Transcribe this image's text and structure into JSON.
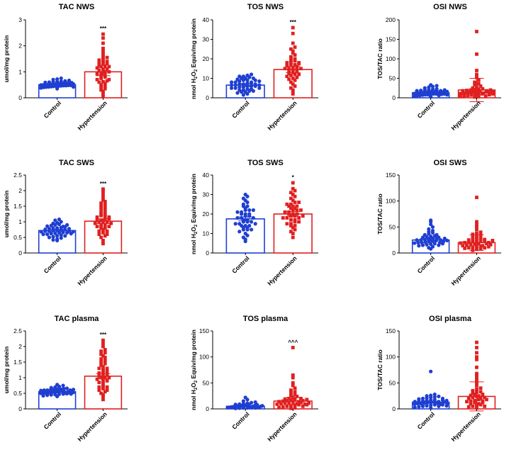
{
  "chart_data": [
    {
      "id": "tac-nws",
      "type": "bar",
      "title": "TAC NWS",
      "ylabel": "umol/mg protein",
      "ylim": [
        0,
        3
      ],
      "yticks": [
        0,
        1,
        2,
        3
      ],
      "categories": [
        "Control",
        "Hypertension"
      ],
      "means": [
        0.5,
        1.0
      ],
      "errors": [
        0.05,
        0.15
      ],
      "significance": "***",
      "series": [
        {
          "name": "Control",
          "color": "#1f3fd1",
          "points": [
            0.35,
            0.38,
            0.4,
            0.41,
            0.42,
            0.43,
            0.44,
            0.45,
            0.45,
            0.46,
            0.47,
            0.47,
            0.48,
            0.48,
            0.49,
            0.49,
            0.5,
            0.5,
            0.5,
            0.51,
            0.51,
            0.52,
            0.52,
            0.53,
            0.53,
            0.54,
            0.54,
            0.55,
            0.55,
            0.56,
            0.56,
            0.57,
            0.58,
            0.59,
            0.6,
            0.61,
            0.62,
            0.63,
            0.65,
            0.67,
            0.7,
            0.72,
            0.75,
            0.42,
            0.53
          ]
        },
        {
          "name": "Hypertension",
          "color": "#e02020",
          "points": [
            0.05,
            0.15,
            0.25,
            0.3,
            0.35,
            0.4,
            0.45,
            0.5,
            0.55,
            0.6,
            0.62,
            0.65,
            0.7,
            0.75,
            0.8,
            0.85,
            0.9,
            0.92,
            0.95,
            1.0,
            1.05,
            1.08,
            1.1,
            1.15,
            1.2,
            1.22,
            1.25,
            1.3,
            1.32,
            1.35,
            1.4,
            1.45,
            1.5,
            1.55,
            1.6,
            1.7,
            1.8,
            1.9,
            2.1,
            2.3,
            2.45,
            0.7,
            1.0,
            1.2,
            1.4
          ]
        }
      ]
    },
    {
      "id": "tos-nws",
      "type": "bar",
      "title": "TOS NWS",
      "ylabel": "nmol H2O2 Equiv/mg protein",
      "ylim": [
        0,
        40
      ],
      "yticks": [
        0,
        10,
        20,
        30,
        40
      ],
      "categories": [
        "Control",
        "Hypertension"
      ],
      "means": [
        6.5,
        14.5
      ],
      "errors": [
        0.8,
        1.6
      ],
      "significance": "***",
      "series": [
        {
          "name": "Control",
          "color": "#1f3fd1",
          "points": [
            1.5,
            2,
            2.5,
            3,
            3,
            3.5,
            4,
            4,
            4.5,
            5,
            5,
            5.5,
            5.5,
            6,
            6,
            6.5,
            6.5,
            7,
            7,
            7.5,
            7.5,
            8,
            8,
            8.5,
            9,
            9,
            9.5,
            10,
            10,
            10.5,
            11,
            11,
            11.5,
            12,
            3.5,
            4.5,
            6,
            7,
            8,
            9,
            10,
            5,
            6.5,
            8.5
          ]
        },
        {
          "name": "Hypertension",
          "color": "#e02020",
          "points": [
            2,
            3,
            4,
            5,
            6,
            7,
            8,
            9,
            9.5,
            10,
            11,
            11.5,
            12,
            12.5,
            13,
            13.5,
            14,
            14,
            14.5,
            15,
            15,
            15.5,
            16,
            16.5,
            17,
            17,
            17.5,
            18,
            18.5,
            19,
            19.5,
            20,
            21,
            22,
            23,
            24,
            25,
            26,
            28,
            33,
            36,
            10.5,
            15,
            18,
            12
          ]
        }
      ]
    },
    {
      "id": "osi-nws",
      "type": "bar",
      "title": "OSI NWS",
      "ylabel": "TOS/TAC ratio",
      "ylim": [
        0,
        200
      ],
      "yticks": [
        0,
        50,
        100,
        150,
        200
      ],
      "categories": [
        "Control",
        "Hypertension"
      ],
      "means": [
        13,
        20
      ],
      "errors": [
        2,
        30
      ],
      "significance": "",
      "series": [
        {
          "name": "Control",
          "color": "#1f3fd1",
          "points": [
            3,
            4,
            5,
            6,
            7,
            8,
            8,
            9,
            10,
            10,
            11,
            11,
            12,
            12,
            13,
            13,
            14,
            14,
            15,
            15,
            16,
            17,
            18,
            19,
            20,
            21,
            22,
            23,
            25,
            27,
            29,
            31,
            33,
            6,
            9,
            12,
            15,
            18,
            10,
            14,
            8,
            11,
            16,
            20
          ]
        },
        {
          "name": "Hypertension",
          "color": "#e02020",
          "points": [
            2,
            3,
            4,
            5,
            6,
            7,
            8,
            9,
            10,
            11,
            12,
            13,
            14,
            15,
            16,
            17,
            18,
            19,
            20,
            21,
            22,
            23,
            25,
            27,
            30,
            33,
            36,
            40,
            45,
            52,
            60,
            70,
            112,
            170,
            5,
            8,
            10,
            12,
            15,
            18,
            20,
            14,
            16
          ]
        }
      ]
    },
    {
      "id": "tac-sws",
      "type": "bar",
      "title": "TAC SWS",
      "ylabel": "umol/mg protein",
      "ylim": [
        0,
        2.5
      ],
      "yticks": [
        0,
        0.5,
        1.0,
        1.5,
        2.0,
        2.5
      ],
      "categories": [
        "Control",
        "Hypertension"
      ],
      "means": [
        0.72,
        1.02
      ],
      "errors": [
        0.04,
        0.08
      ],
      "significance": "***",
      "series": [
        {
          "name": "Control",
          "color": "#1f3fd1",
          "points": [
            0.4,
            0.42,
            0.45,
            0.48,
            0.5,
            0.52,
            0.55,
            0.57,
            0.6,
            0.6,
            0.62,
            0.63,
            0.65,
            0.66,
            0.68,
            0.7,
            0.7,
            0.72,
            0.73,
            0.75,
            0.76,
            0.78,
            0.8,
            0.8,
            0.82,
            0.84,
            0.86,
            0.88,
            0.9,
            0.92,
            0.95,
            0.97,
            1.0,
            1.05,
            1.08,
            0.55,
            0.65,
            0.75,
            0.85,
            0.7,
            0.62,
            0.78,
            0.9,
            0.68
          ]
        },
        {
          "name": "Hypertension",
          "color": "#e02020",
          "points": [
            0.3,
            0.4,
            0.5,
            0.55,
            0.6,
            0.65,
            0.7,
            0.75,
            0.8,
            0.8,
            0.85,
            0.9,
            0.9,
            0.95,
            1.0,
            1.0,
            1.05,
            1.05,
            1.1,
            1.1,
            1.15,
            1.2,
            1.2,
            1.25,
            1.3,
            1.35,
            1.4,
            1.45,
            1.5,
            1.55,
            1.6,
            1.65,
            1.7,
            1.8,
            1.9,
            2.0,
            2.05,
            0.7,
            0.85,
            1.0,
            1.15,
            0.95,
            1.25,
            0.6
          ]
        }
      ]
    },
    {
      "id": "tos-sws",
      "type": "bar",
      "title": "TOS SWS",
      "ylabel": "nmol H2O2 Equiv/mg protein",
      "ylim": [
        0,
        40
      ],
      "yticks": [
        0,
        10,
        20,
        30,
        40
      ],
      "categories": [
        "Control",
        "Hypertension"
      ],
      "means": [
        17.5,
        20
      ],
      "errors": [
        1,
        1.2
      ],
      "significance": "*",
      "series": [
        {
          "name": "Control",
          "color": "#1f3fd1",
          "points": [
            6,
            7,
            8,
            9,
            10,
            11,
            12,
            12,
            13,
            13,
            14,
            14,
            15,
            15,
            16,
            16,
            17,
            17,
            18,
            18,
            19,
            19,
            20,
            20,
            21,
            21,
            22,
            22,
            23,
            24,
            25,
            26,
            27,
            28,
            29,
            30,
            12,
            14,
            16,
            18,
            20,
            22,
            24,
            15
          ]
        },
        {
          "name": "Hypertension",
          "color": "#e02020",
          "points": [
            8,
            10,
            11,
            12,
            13,
            14,
            15,
            15,
            16,
            16,
            17,
            17,
            18,
            18,
            19,
            19,
            20,
            20,
            21,
            21,
            22,
            22,
            23,
            23,
            24,
            24,
            25,
            25,
            26,
            27,
            28,
            29,
            30,
            31,
            32,
            33,
            36,
            14,
            18,
            20,
            22,
            26,
            19,
            24
          ]
        }
      ]
    },
    {
      "id": "osi-sws",
      "type": "bar",
      "title": "OSI SWS",
      "ylabel": "TOS/TAC ratio",
      "ylim": [
        0,
        150
      ],
      "yticks": [
        0,
        50,
        100,
        150
      ],
      "categories": [
        "Control",
        "Hypertension"
      ],
      "means": [
        25,
        20
      ],
      "errors": [
        3,
        15
      ],
      "significance": "",
      "series": [
        {
          "name": "Control",
          "color": "#1f3fd1",
          "points": [
            8,
            10,
            12,
            14,
            15,
            16,
            17,
            18,
            19,
            20,
            20,
            21,
            22,
            23,
            24,
            25,
            25,
            26,
            27,
            28,
            29,
            30,
            31,
            32,
            33,
            35,
            37,
            39,
            41,
            43,
            46,
            50,
            55,
            60,
            63,
            15,
            20,
            25,
            30,
            22,
            28,
            18,
            35,
            24
          ]
        },
        {
          "name": "Hypertension",
          "color": "#e02020",
          "points": [
            5,
            7,
            8,
            9,
            10,
            11,
            12,
            13,
            14,
            15,
            16,
            17,
            18,
            19,
            20,
            21,
            22,
            23,
            24,
            25,
            26,
            27,
            28,
            30,
            32,
            34,
            36,
            38,
            40,
            45,
            50,
            55,
            60,
            107,
            10,
            14,
            18,
            22,
            26,
            12,
            16,
            20,
            24
          ]
        }
      ]
    },
    {
      "id": "tac-plasma",
      "type": "bar",
      "title": "TAC plasma",
      "ylabel": "umol/mg protein",
      "ylim": [
        0,
        2.5
      ],
      "yticks": [
        0,
        0.5,
        1.0,
        1.5,
        2.0,
        2.5
      ],
      "categories": [
        "Control",
        "Hypertension"
      ],
      "means": [
        0.55,
        1.05
      ],
      "errors": [
        0.03,
        0.08
      ],
      "significance": "***",
      "series": [
        {
          "name": "Control",
          "color": "#1f3fd1",
          "points": [
            0.4,
            0.42,
            0.44,
            0.45,
            0.46,
            0.47,
            0.48,
            0.49,
            0.5,
            0.5,
            0.51,
            0.52,
            0.52,
            0.53,
            0.54,
            0.55,
            0.55,
            0.56,
            0.57,
            0.58,
            0.58,
            0.59,
            0.6,
            0.6,
            0.61,
            0.62,
            0.63,
            0.64,
            0.65,
            0.66,
            0.68,
            0.7,
            0.72,
            0.75,
            0.78,
            0.5,
            0.55,
            0.6,
            0.52,
            0.57,
            0.62,
            0.48,
            0.53
          ]
        },
        {
          "name": "Hypertension",
          "color": "#e02020",
          "points": [
            0.3,
            0.4,
            0.45,
            0.5,
            0.55,
            0.6,
            0.65,
            0.7,
            0.75,
            0.8,
            0.85,
            0.9,
            0.95,
            1.0,
            1.0,
            1.05,
            1.1,
            1.15,
            1.2,
            1.2,
            1.25,
            1.3,
            1.35,
            1.4,
            1.45,
            1.5,
            1.55,
            1.6,
            1.65,
            1.7,
            1.75,
            1.8,
            1.85,
            1.9,
            2.0,
            2.1,
            2.2,
            0.7,
            0.9,
            1.1,
            1.3,
            1.0,
            0.6
          ]
        }
      ]
    },
    {
      "id": "tos-plasma",
      "type": "bar",
      "title": "TOS plasma",
      "ylabel": "nmol H2O2 Equiv/mg protein",
      "ylim": [
        0,
        150
      ],
      "yticks": [
        0,
        50,
        100,
        150
      ],
      "categories": [
        "Control",
        "Hypertension"
      ],
      "means": [
        5,
        15
      ],
      "errors": [
        1,
        7
      ],
      "significance": "^^^",
      "series": [
        {
          "name": "Control",
          "color": "#1f3fd1",
          "points": [
            1,
            1.5,
            2,
            2,
            2.5,
            3,
            3,
            3.5,
            4,
            4,
            4.5,
            5,
            5,
            5.5,
            6,
            6,
            6.5,
            7,
            7,
            7.5,
            8,
            8,
            8.5,
            9,
            10,
            11,
            12,
            13,
            15,
            18,
            22,
            3,
            4,
            5,
            6,
            7,
            8,
            2,
            3,
            4,
            5,
            6
          ]
        },
        {
          "name": "Hypertension",
          "color": "#e02020",
          "points": [
            1,
            2,
            3,
            4,
            5,
            6,
            7,
            8,
            9,
            10,
            11,
            12,
            13,
            14,
            15,
            16,
            17,
            18,
            19,
            20,
            22,
            24,
            26,
            28,
            30,
            33,
            36,
            40,
            45,
            50,
            60,
            65,
            118,
            5,
            8,
            10,
            12,
            14,
            16,
            18,
            20,
            9,
            11
          ]
        }
      ]
    },
    {
      "id": "osi-plasma",
      "type": "bar",
      "title": "OSI plasma",
      "ylabel": "TOS/TAC ratio",
      "ylim": [
        0,
        150
      ],
      "yticks": [
        0,
        50,
        100,
        150
      ],
      "categories": [
        "Control",
        "Hypertension"
      ],
      "means": [
        13,
        24
      ],
      "errors": [
        2,
        28
      ],
      "significance": "",
      "series": [
        {
          "name": "Control",
          "color": "#1f3fd1",
          "points": [
            2,
            3,
            4,
            5,
            6,
            7,
            8,
            9,
            10,
            10,
            11,
            12,
            12,
            13,
            14,
            15,
            15,
            16,
            17,
            18,
            19,
            20,
            21,
            22,
            23,
            24,
            25,
            26,
            28,
            72,
            5,
            8,
            11,
            14,
            17,
            20,
            9,
            13,
            16,
            6,
            10
          ]
        },
        {
          "name": "Hypertension",
          "color": "#e02020",
          "points": [
            2,
            4,
            5,
            6,
            8,
            10,
            12,
            14,
            15,
            16,
            18,
            20,
            22,
            24,
            26,
            28,
            30,
            32,
            35,
            38,
            40,
            45,
            50,
            55,
            60,
            65,
            68,
            80,
            95,
            100,
            108,
            118,
            128,
            5,
            10,
            15,
            20,
            25,
            12,
            18,
            22,
            28,
            33
          ]
        }
      ]
    }
  ]
}
